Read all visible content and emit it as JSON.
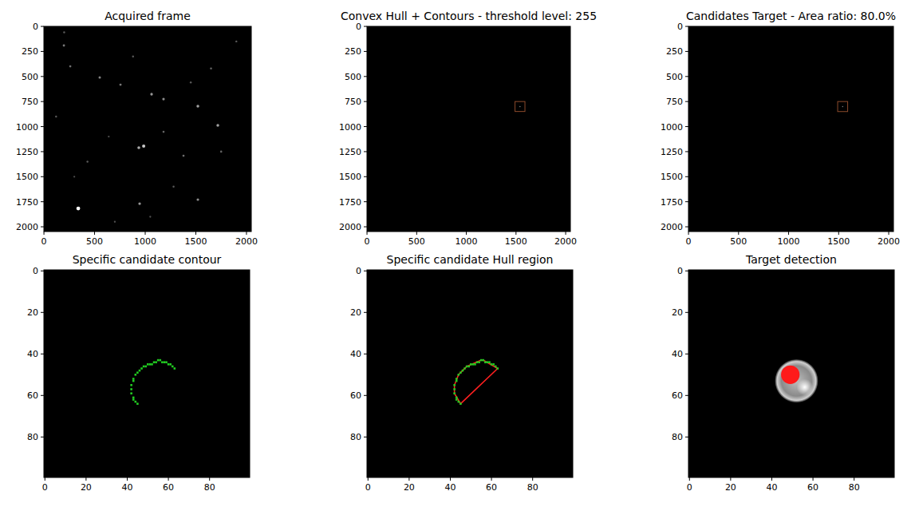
{
  "chart_data": [
    {
      "type": "frame",
      "title": "Acquired frame",
      "xlim": [
        -0.5,
        2047.5
      ],
      "ylim": [
        2047.5,
        -0.5
      ],
      "xticks": [
        0,
        500,
        1000,
        1500,
        2000
      ],
      "yticks": [
        0,
        250,
        500,
        750,
        1000,
        1250,
        1500,
        1750,
        2000
      ],
      "stars": {
        "x": [
          339,
          985,
          937,
          1520,
          551,
          756,
          260,
          1063,
          1181,
          1717,
          197,
          945,
          1520,
          1378,
          1181,
          120,
          430,
          1650,
          1900,
          640,
          1280,
          880,
          300,
          1750,
          1050,
          1450,
          700,
          200
        ],
        "y": [
          1817,
          1195,
          1211,
          797,
          510,
          582,
          398,
          677,
          725,
          988,
          191,
          1769,
          1729,
          1291,
          1052,
          900,
          1350,
          420,
          150,
          1100,
          1600,
          300,
          1500,
          1250,
          1900,
          560,
          1950,
          60
        ],
        "brightness": [
          255,
          200,
          170,
          160,
          130,
          120,
          110,
          150,
          140,
          160,
          120,
          150,
          140,
          110,
          100,
          90,
          90,
          100,
          90,
          80,
          90,
          90,
          80,
          100,
          80,
          90,
          80,
          90
        ]
      }
    },
    {
      "type": "boxes",
      "title": "Convex Hull + Contours - threshold level: 255",
      "xlim": [
        -0.5,
        2047.5
      ],
      "ylim": [
        2047.5,
        -0.5
      ],
      "xticks": [
        0,
        500,
        1000,
        1500,
        2000
      ],
      "yticks": [
        0,
        250,
        500,
        750,
        1000,
        1250,
        1500,
        1750,
        2000
      ],
      "box": {
        "x": 1490,
        "y": 750,
        "width": 100,
        "height": 100
      },
      "color": "#8b4a2b"
    },
    {
      "type": "boxes",
      "title": "Candidates Target - Area ratio: 80.0%",
      "xlim": [
        -0.5,
        2047.5
      ],
      "ylim": [
        2047.5,
        -0.5
      ],
      "xticks": [
        0,
        500,
        1000,
        1500,
        2000
      ],
      "yticks": [
        0,
        250,
        500,
        750,
        1000,
        1250,
        1500,
        1750,
        2000
      ],
      "box": {
        "x": 1490,
        "y": 750,
        "width": 100,
        "height": 100
      },
      "color": "#8b4a2b"
    },
    {
      "type": "contour",
      "title": "Specific candidate contour",
      "xlim": [
        -0.5,
        99.5
      ],
      "ylim": [
        99.5,
        -0.5
      ],
      "xticks": [
        0,
        20,
        40,
        60,
        80
      ],
      "yticks": [
        0,
        20,
        40,
        60,
        80
      ],
      "contour": {
        "x": [
          45,
          44,
          43,
          43,
          42,
          42,
          42,
          43,
          43,
          44,
          45,
          46,
          47,
          48,
          49,
          50,
          51,
          52,
          53,
          54,
          55,
          56,
          57,
          58,
          59,
          60,
          61,
          62,
          63
        ],
        "y": [
          64,
          63,
          62,
          61,
          59,
          57,
          55,
          53,
          52,
          50,
          49,
          48,
          47,
          46,
          46,
          45,
          45,
          45,
          44,
          44,
          43,
          43,
          44,
          44,
          44,
          45,
          45,
          46,
          47
        ]
      },
      "color": "#22cc22"
    },
    {
      "type": "hull",
      "title": "Specific candidate Hull region",
      "xlim": [
        -0.5,
        99.5
      ],
      "ylim": [
        99.5,
        -0.5
      ],
      "xticks": [
        0,
        20,
        40,
        60,
        80
      ],
      "yticks": [
        0,
        20,
        40,
        60,
        80
      ],
      "contour": {
        "x": [
          45,
          44,
          43,
          43,
          42,
          42,
          42,
          43,
          43,
          44,
          45,
          46,
          47,
          48,
          49,
          50,
          51,
          52,
          53,
          54,
          55,
          56,
          57,
          58,
          59,
          60,
          61,
          62,
          63
        ],
        "y": [
          64,
          63,
          62,
          61,
          59,
          57,
          55,
          53,
          52,
          50,
          49,
          48,
          47,
          46,
          46,
          45,
          45,
          45,
          44,
          44,
          43,
          43,
          44,
          44,
          44,
          45,
          45,
          46,
          47
        ]
      },
      "hull": {
        "x": [
          45,
          42,
          42,
          44,
          48,
          55,
          56,
          63,
          45
        ],
        "y": [
          64,
          59,
          55,
          50,
          46,
          43,
          43,
          47,
          64
        ]
      },
      "color": "#22cc22",
      "hull_color": "#ff2020"
    },
    {
      "type": "detection",
      "title": "Target detection",
      "xlim": [
        -0.5,
        99.5
      ],
      "ylim": [
        99.5,
        -0.5
      ],
      "xticks": [
        0,
        20,
        40,
        60,
        80
      ],
      "yticks": [
        0,
        20,
        40,
        60,
        80
      ],
      "blob": {
        "cx": 52,
        "cy": 53,
        "r": 10.5
      },
      "highlight": {
        "cx": 56,
        "cy": 56,
        "r": 4
      },
      "target": {
        "cx": 49,
        "cy": 50,
        "r": 4.5
      },
      "color": "#ff1a1a"
    }
  ]
}
